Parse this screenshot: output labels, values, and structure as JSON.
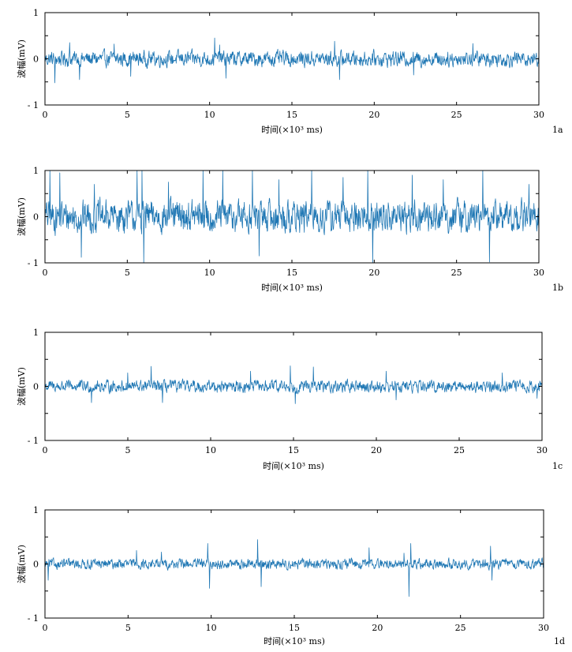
{
  "chart_data": [
    {
      "type": "line",
      "panel_label": "1a",
      "xlabel": "时间(×10³ ms)",
      "ylabel": "波幅(mV)",
      "xlim": [
        0,
        30
      ],
      "ylim": [
        -1,
        1
      ],
      "xticks": [
        0,
        5,
        10,
        15,
        20,
        25,
        30
      ],
      "yticks": [
        -1,
        0,
        1
      ],
      "ytick_labels": [
        "- 1",
        "0",
        "1"
      ],
      "series": [
        {
          "color": "#1f77b4",
          "amplitude": 0.18,
          "spikes": [
            {
              "x": 0.6,
              "y": -0.52
            },
            {
              "x": 1.5,
              "y": 0.35
            },
            {
              "x": 2.1,
              "y": -0.45
            },
            {
              "x": 4.2,
              "y": 0.32
            },
            {
              "x": 5.2,
              "y": -0.38
            },
            {
              "x": 10.3,
              "y": 0.45
            },
            {
              "x": 10.6,
              "y": 0.3
            },
            {
              "x": 11.0,
              "y": -0.42
            },
            {
              "x": 17.6,
              "y": 0.38
            },
            {
              "x": 17.9,
              "y": -0.45
            },
            {
              "x": 22.4,
              "y": -0.35
            },
            {
              "x": 26.0,
              "y": 0.33
            }
          ]
        }
      ]
    },
    {
      "type": "line",
      "panel_label": "1b",
      "xlabel": "时间(×10³ ms)",
      "ylabel": "波幅(mV)",
      "xlim": [
        0,
        30
      ],
      "ylim": [
        -1,
        1
      ],
      "xticks": [
        0,
        5,
        10,
        15,
        20,
        25,
        30
      ],
      "yticks": [
        -1,
        0,
        1
      ],
      "ytick_labels": [
        "- 1",
        "0",
        "1"
      ],
      "series": [
        {
          "color": "#1f77b4",
          "amplitude": 0.38,
          "spikes": [
            {
              "x": 0.3,
              "y": 1.0
            },
            {
              "x": 0.9,
              "y": 0.95
            },
            {
              "x": 2.2,
              "y": -0.88
            },
            {
              "x": 3.0,
              "y": 0.7
            },
            {
              "x": 5.6,
              "y": 1.0
            },
            {
              "x": 5.9,
              "y": 1.0
            },
            {
              "x": 6.0,
              "y": -1.0
            },
            {
              "x": 7.5,
              "y": 0.75
            },
            {
              "x": 9.6,
              "y": 1.0
            },
            {
              "x": 10.8,
              "y": 1.0
            },
            {
              "x": 12.6,
              "y": 1.0
            },
            {
              "x": 13.0,
              "y": -0.85
            },
            {
              "x": 14.2,
              "y": 0.8
            },
            {
              "x": 16.2,
              "y": 1.0
            },
            {
              "x": 18.1,
              "y": 0.85
            },
            {
              "x": 19.6,
              "y": 1.0
            },
            {
              "x": 19.9,
              "y": -1.0
            },
            {
              "x": 22.3,
              "y": 0.9
            },
            {
              "x": 24.2,
              "y": 0.8
            },
            {
              "x": 26.6,
              "y": 1.0
            },
            {
              "x": 27.0,
              "y": -0.98
            },
            {
              "x": 29.4,
              "y": 0.7
            }
          ]
        }
      ]
    },
    {
      "type": "line",
      "panel_label": "1c",
      "xlabel": "时间(×10³ ms)",
      "ylabel": "波幅(mV)",
      "xlim": [
        0,
        30
      ],
      "ylim": [
        -1,
        1
      ],
      "xticks": [
        0,
        5,
        10,
        15,
        20,
        25,
        30
      ],
      "yticks": [
        -1,
        0,
        1
      ],
      "ytick_labels": [
        "- 1",
        "0",
        "1"
      ],
      "series": [
        {
          "color": "#1f77b4",
          "amplitude": 0.12,
          "spikes": [
            {
              "x": 2.8,
              "y": -0.3
            },
            {
              "x": 5.0,
              "y": 0.25
            },
            {
              "x": 6.4,
              "y": 0.37
            },
            {
              "x": 7.1,
              "y": -0.3
            },
            {
              "x": 12.4,
              "y": 0.28
            },
            {
              "x": 14.8,
              "y": 0.38
            },
            {
              "x": 15.1,
              "y": -0.32
            },
            {
              "x": 16.2,
              "y": 0.36
            },
            {
              "x": 20.6,
              "y": 0.28
            },
            {
              "x": 21.2,
              "y": -0.25
            },
            {
              "x": 27.6,
              "y": 0.25
            },
            {
              "x": 29.7,
              "y": -0.22
            }
          ]
        }
      ]
    },
    {
      "type": "line",
      "panel_label": "1d",
      "xlabel": "时间(×10³ ms)",
      "ylabel": "波幅(mV)",
      "xlim": [
        0,
        30
      ],
      "ylim": [
        -1,
        1
      ],
      "xticks": [
        0,
        5,
        10,
        15,
        20,
        25,
        30
      ],
      "yticks": [
        -1,
        0,
        1
      ],
      "ytick_labels": [
        "- 1",
        "0",
        "1"
      ],
      "series": [
        {
          "color": "#1f77b4",
          "amplitude": 0.1,
          "spikes": [
            {
              "x": 0.2,
              "y": -0.3
            },
            {
              "x": 5.5,
              "y": 0.25
            },
            {
              "x": 7.0,
              "y": 0.22
            },
            {
              "x": 9.8,
              "y": 0.38
            },
            {
              "x": 9.9,
              "y": -0.45
            },
            {
              "x": 12.8,
              "y": 0.45
            },
            {
              "x": 13.0,
              "y": -0.42
            },
            {
              "x": 19.5,
              "y": 0.3
            },
            {
              "x": 21.6,
              "y": 0.2
            },
            {
              "x": 21.9,
              "y": -0.6
            },
            {
              "x": 22.0,
              "y": 0.38
            },
            {
              "x": 26.8,
              "y": 0.33
            },
            {
              "x": 26.9,
              "y": -0.3
            }
          ]
        }
      ]
    }
  ]
}
